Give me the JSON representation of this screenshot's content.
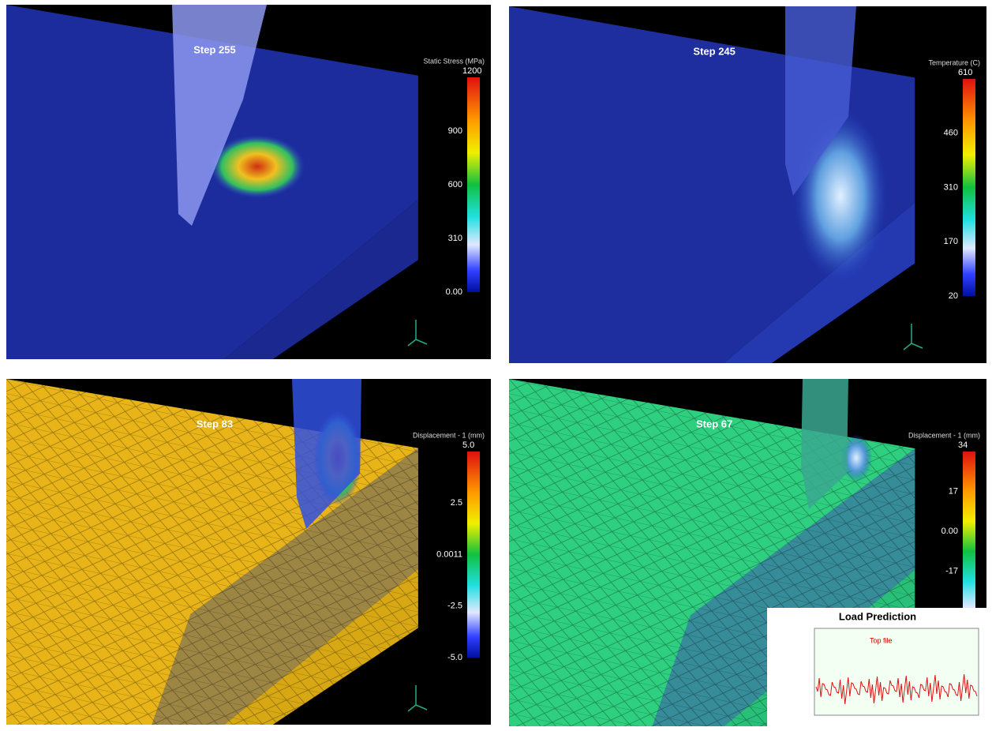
{
  "panels": [
    {
      "step": "Step 255",
      "colorbar": {
        "title": "Static Stress (MPa)",
        "labels": [
          "1200",
          "900",
          "600",
          "310",
          "0.00"
        ]
      }
    },
    {
      "step": "Step 245",
      "colorbar": {
        "title": "Temperature (C)",
        "labels": [
          "610",
          "460",
          "310",
          "170",
          "20"
        ]
      }
    },
    {
      "step": "Step 83",
      "colorbar": {
        "title": "Displacement - 1 (mm)",
        "labels": [
          "5.0",
          "2.5",
          "0.0011",
          "-2.5",
          "-5.0"
        ]
      }
    },
    {
      "step": "Step 67",
      "colorbar": {
        "title": "Displacement - 1 (mm)",
        "labels": [
          "34",
          "17",
          "0.00",
          "-17"
        ]
      },
      "inset": {
        "title": "Load Prediction",
        "legend": "Top file"
      }
    }
  ]
}
